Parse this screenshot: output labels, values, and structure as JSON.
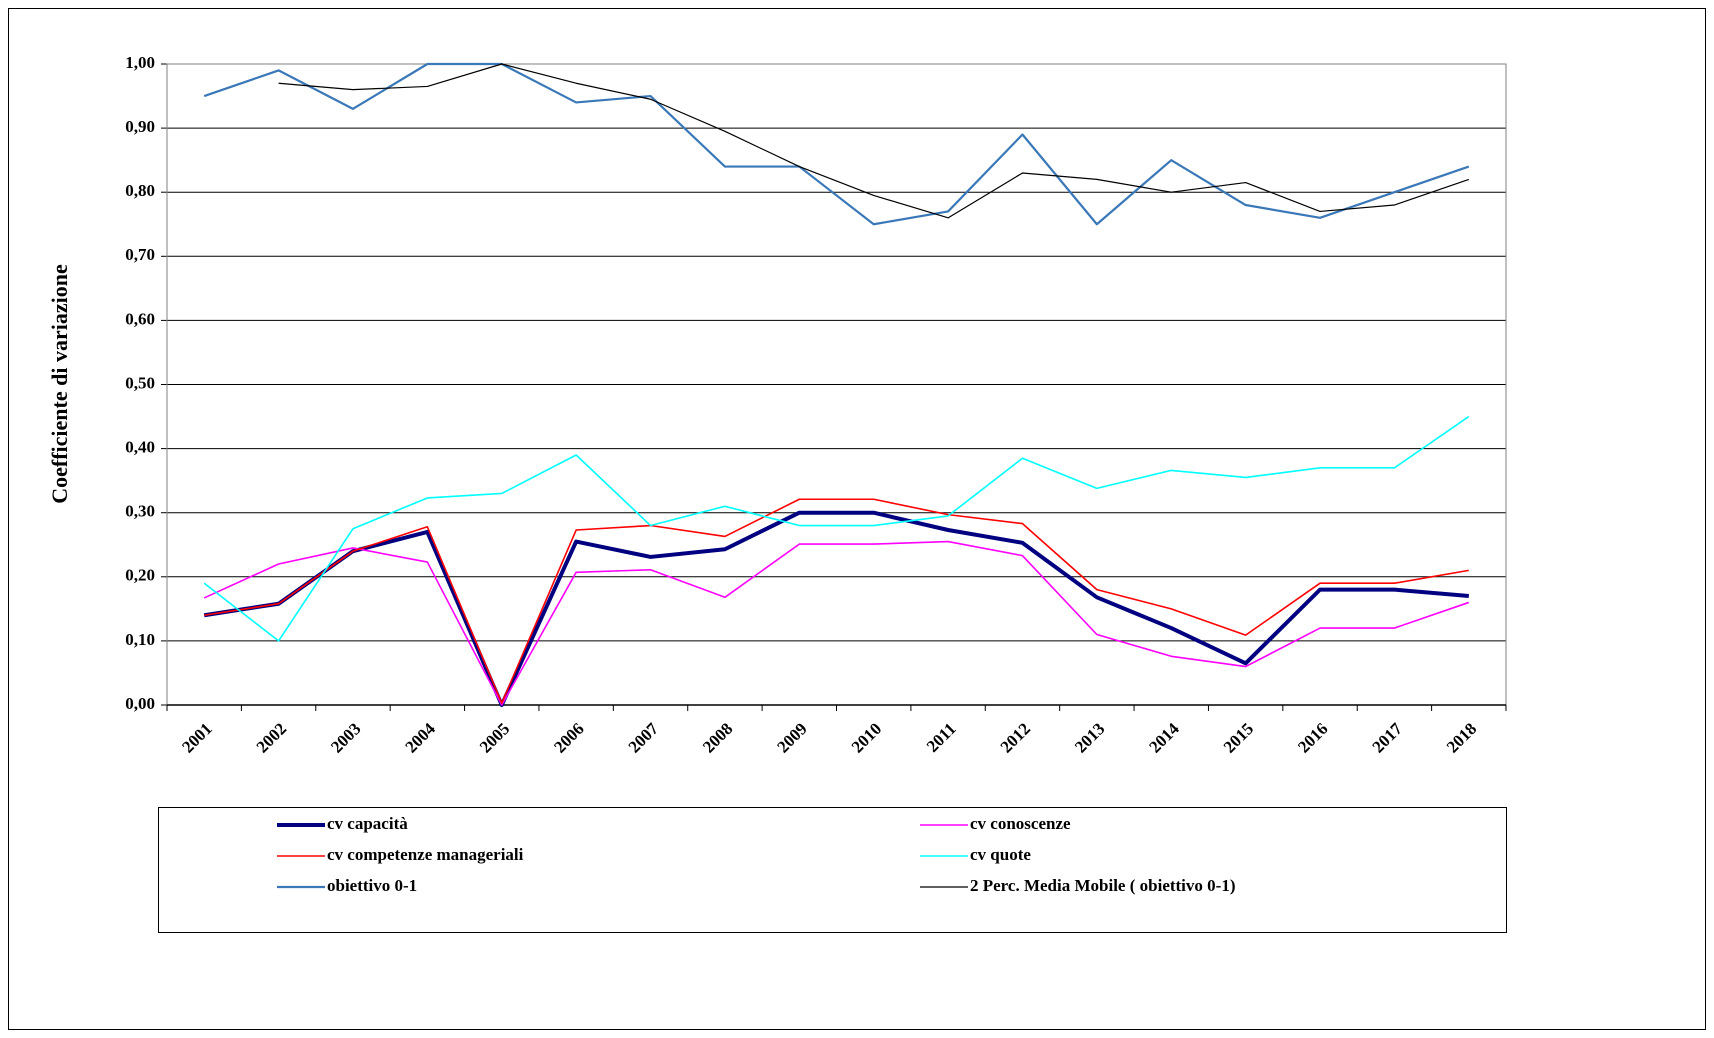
{
  "chart_data": {
    "type": "line",
    "y_label": "Coefficiente di variazione",
    "categories": [
      "2001",
      "2002",
      "2003",
      "2004",
      "2005",
      "2006",
      "2007",
      "2008",
      "2009",
      "2010",
      "2011",
      "2012",
      "2013",
      "2014",
      "2015",
      "2016",
      "2017",
      "2018"
    ],
    "series": [
      {
        "name": "cv capacità",
        "color": "#000080",
        "width": 4,
        "values": [
          0.14,
          0.158,
          0.24,
          0.27,
          0.0,
          0.255,
          0.231,
          0.243,
          0.3,
          0.3,
          0.273,
          0.253,
          0.168,
          0.12,
          0.065,
          0.18,
          0.18,
          0.17
        ]
      },
      {
        "name": "cv conoscenze",
        "color": "#ff00ff",
        "width": 1.6,
        "values": [
          0.167,
          0.22,
          0.245,
          0.223,
          0.0,
          0.207,
          0.211,
          0.168,
          0.251,
          0.251,
          0.255,
          0.233,
          0.11,
          0.076,
          0.06,
          0.12,
          0.12,
          0.16
        ]
      },
      {
        "name": "cv competenze manageriali",
        "color": "#ff0000",
        "width": 1.6,
        "values": [
          0.14,
          0.158,
          0.24,
          0.278,
          0.003,
          0.273,
          0.28,
          0.263,
          0.321,
          0.321,
          0.297,
          0.283,
          0.18,
          0.15,
          0.109,
          0.19,
          0.19,
          0.21
        ]
      },
      {
        "name": "cv quote",
        "color": "#00ffff",
        "width": 1.6,
        "values": [
          0.19,
          0.1,
          0.275,
          0.323,
          0.33,
          0.39,
          0.28,
          0.31,
          0.28,
          0.28,
          0.295,
          0.385,
          0.338,
          0.366,
          0.355,
          0.37,
          0.37,
          0.45
        ]
      },
      {
        "name": "obiettivo 0-1",
        "color": "#3a78b8",
        "width": 2.2,
        "values": [
          0.95,
          0.99,
          0.93,
          1.0,
          1.0,
          0.94,
          0.95,
          0.84,
          0.84,
          0.75,
          0.77,
          0.89,
          0.75,
          0.85,
          0.78,
          0.76,
          0.8,
          0.84
        ]
      },
      {
        "name": "2 Perc. Media Mobile ( obiettivo 0-1)",
        "color": "#000000",
        "width": 1.2,
        "values": [
          null,
          0.97,
          0.96,
          0.965,
          1.0,
          0.97,
          0.945,
          0.895,
          0.84,
          0.795,
          0.76,
          0.83,
          0.82,
          0.8,
          0.815,
          0.77,
          0.78,
          0.82
        ]
      }
    ],
    "ylim": [
      0,
      1
    ],
    "yticks": [
      {
        "value": 0,
        "label": "0,00"
      },
      {
        "value": 0.1,
        "label": "0,10"
      },
      {
        "value": 0.2,
        "label": "0,20"
      },
      {
        "value": 0.3,
        "label": "0,30"
      },
      {
        "value": 0.4,
        "label": "0,40"
      },
      {
        "value": 0.5,
        "label": "0,50"
      },
      {
        "value": 0.6,
        "label": "0,60"
      },
      {
        "value": 0.7,
        "label": "0,70"
      },
      {
        "value": 0.8,
        "label": "0,80"
      },
      {
        "value": 0.9,
        "label": "0,90"
      },
      {
        "value": 1,
        "label": "1,00"
      }
    ],
    "grid": true,
    "legend": "bottom"
  }
}
